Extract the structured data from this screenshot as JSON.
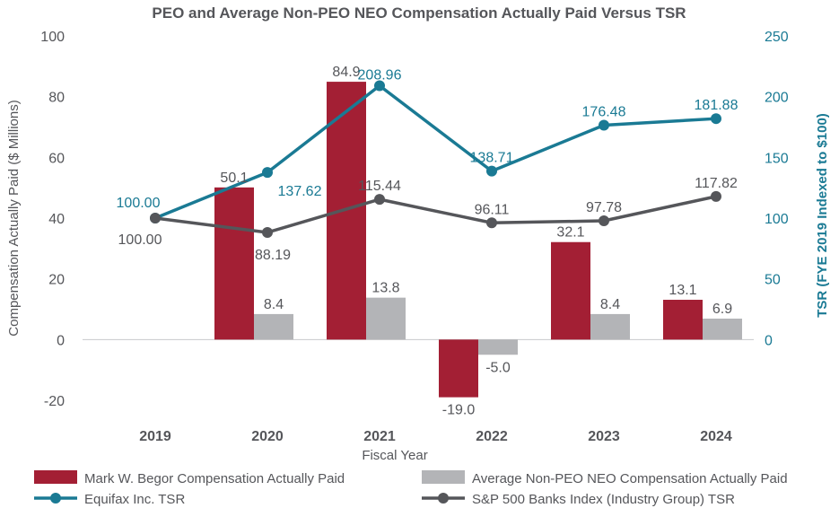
{
  "chart_data": {
    "type": "bar+line",
    "title": "PEO and Average Non-PEO NEO Compensation Actually Paid Versus TSR",
    "xlabel": "Fiscal Year",
    "ylabel": "Compensation Actually Paid ($ Millions)",
    "y2label": "TSR (FYE 2019 Indexed to $100)",
    "categories": [
      "2019",
      "2020",
      "2021",
      "2022",
      "2023",
      "2024"
    ],
    "ylim": [
      -20,
      100
    ],
    "y2lim": [
      0,
      250
    ],
    "yticks": [
      "100",
      "80",
      "60",
      "40",
      "20",
      "0",
      "-20"
    ],
    "y2ticks": [
      "250",
      "200",
      "150",
      "100",
      "50",
      "0"
    ],
    "bar_series": [
      {
        "name": "Mark W. Begor Compensation Actually Paid",
        "color": "#a31f34",
        "values": [
          null,
          50.1,
          84.9,
          -19.0,
          32.1,
          13.1
        ],
        "labels": [
          "",
          "50.1",
          "84.9",
          "-19.0",
          "32.1",
          "13.1"
        ]
      },
      {
        "name": "Average Non-PEO NEO Compensation Actually Paid",
        "color": "#b3b4b7",
        "values": [
          null,
          8.4,
          13.8,
          -5.0,
          8.4,
          6.9
        ],
        "labels": [
          "",
          "8.4",
          "13.8",
          "-5.0",
          "8.4",
          "6.9"
        ]
      }
    ],
    "line_series": [
      {
        "name": "Equifax Inc. TSR",
        "color": "#1a7a94",
        "values": [
          100.0,
          137.62,
          208.96,
          138.71,
          176.48,
          181.88
        ],
        "labels": [
          "100.00",
          "137.62",
          "208.96",
          "138.71",
          "176.48",
          "181.88"
        ]
      },
      {
        "name": "S&P 500 Banks Index (Industry Group) TSR",
        "color": "#55565a",
        "values": [
          100.0,
          88.19,
          115.44,
          96.11,
          97.78,
          117.82
        ],
        "labels": [
          "100.00",
          "88.19",
          "115.44",
          "96.11",
          "97.78",
          "117.82"
        ]
      }
    ],
    "legend_position": "bottom",
    "grid": false
  }
}
